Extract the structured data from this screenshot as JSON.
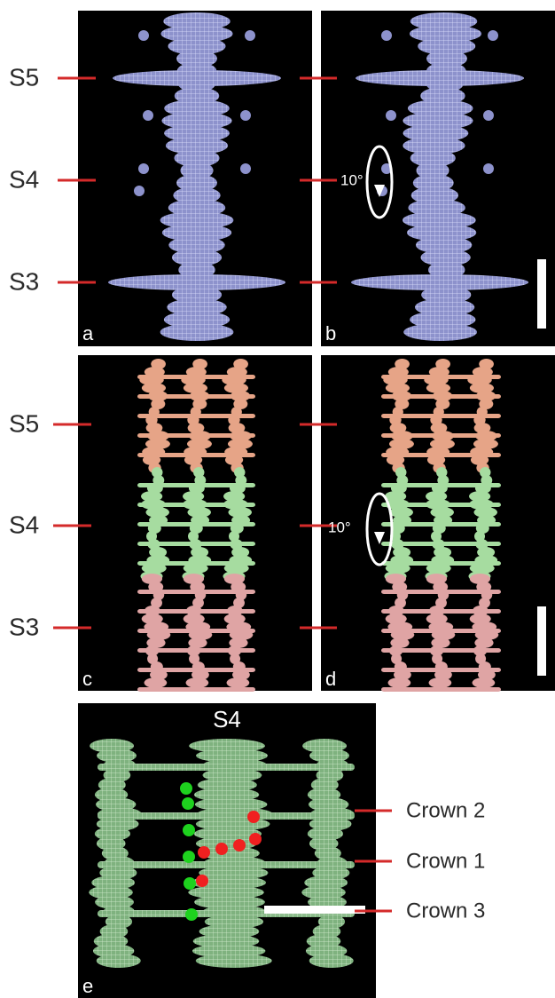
{
  "panels": [
    {
      "letter": "a"
    },
    {
      "letter": "b",
      "rotation_label": "10°"
    },
    {
      "letter": "c"
    },
    {
      "letter": "d",
      "rotation_label": "10°"
    },
    {
      "letter": "e",
      "title": "S4",
      "crowns": [
        "Crown 2",
        "Crown 1",
        "Crown 3"
      ]
    }
  ],
  "levels_top": [
    "S5",
    "S4",
    "S3"
  ],
  "levels_middle": [
    "S5",
    "S4",
    "S3"
  ]
}
